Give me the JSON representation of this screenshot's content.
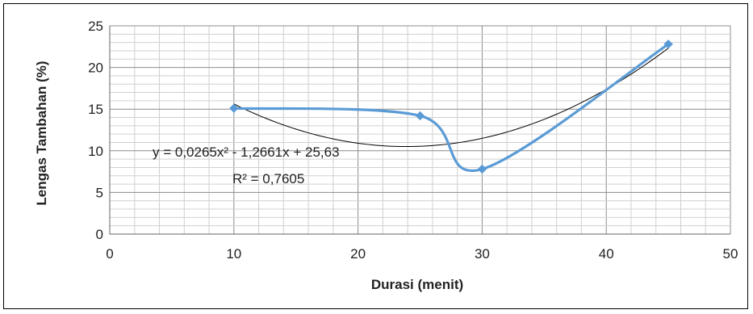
{
  "chart_data": {
    "type": "scatter",
    "xlabel": "Durasi (menit)",
    "ylabel": "Lengas Tambahan (%)",
    "xlim": [
      0,
      50
    ],
    "ylim": [
      0,
      25
    ],
    "x_ticks": [
      "0",
      "10",
      "20",
      "30",
      "40",
      "50"
    ],
    "y_ticks": [
      "0",
      "5",
      "10",
      "15",
      "20",
      "25"
    ],
    "grid": true,
    "legend": "none",
    "series": [
      {
        "x": [
          10,
          25,
          30,
          45
        ],
        "y": [
          15.1,
          14.2,
          7.8,
          22.8
        ],
        "color": "#5B9BD5",
        "style": "smooth line with diamond markers"
      }
    ],
    "trendline": {
      "type": "polynomial",
      "coefficients": [
        0.0265,
        -1.2661,
        25.63
      ],
      "x_range": [
        10,
        45
      ],
      "color": "#000000",
      "equation": "y = 0,0265x² - 1,2661x + 25,63",
      "r_squared": "R² = 0,7605"
    }
  }
}
